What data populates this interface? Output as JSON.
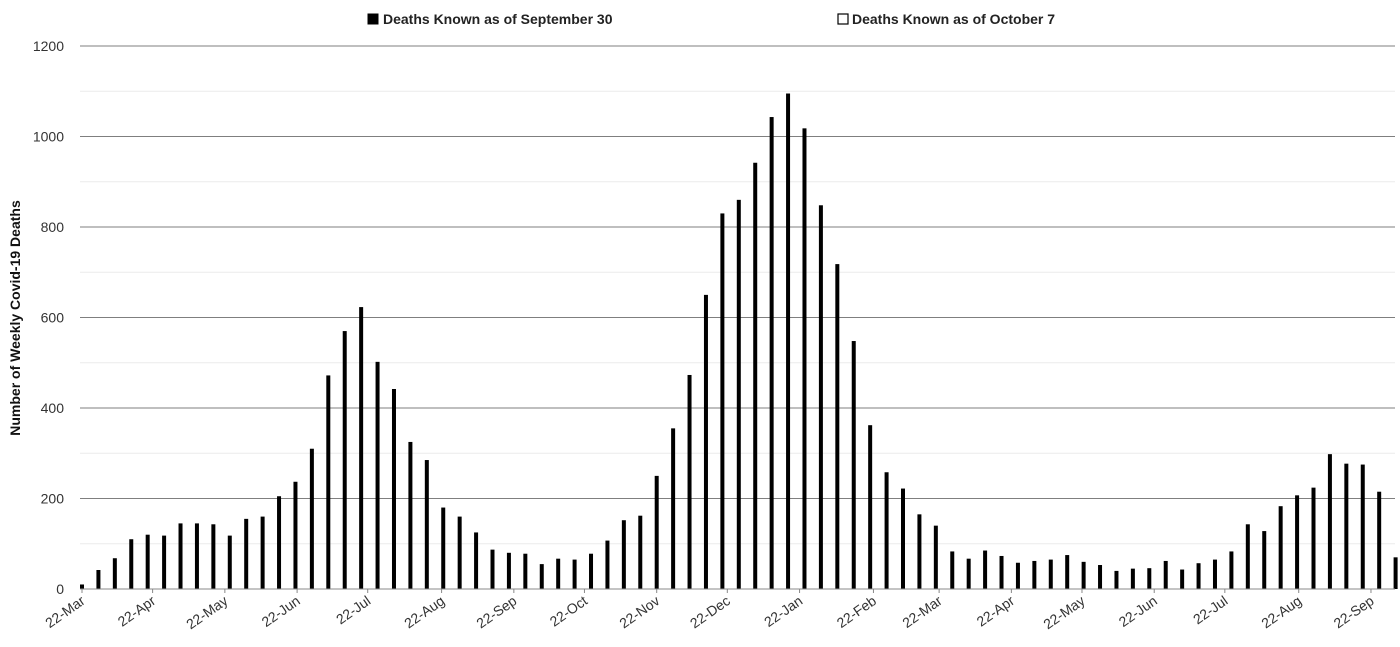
{
  "chart_data": {
    "type": "bar",
    "title": "",
    "ylabel": "Number of Weekly Covid-19 Deaths",
    "xlabel": "",
    "ylim": [
      0,
      1200
    ],
    "yticks": [
      0,
      200,
      400,
      600,
      800,
      1000,
      1200
    ],
    "grid": true,
    "legend_position": "top",
    "legend": [
      {
        "label": "Deaths Known as of September 30",
        "color": "#000000"
      },
      {
        "label": "Deaths Known as of October 7",
        "color": "#ffffff"
      }
    ],
    "x_tick_labels": [
      "22-Mar",
      "22-Apr",
      "22-May",
      "22-Jun",
      "22-Jul",
      "22-Aug",
      "22-Sep",
      "22-Oct",
      "22-Nov",
      "22-Dec",
      "22-Jan",
      "22-Feb",
      "22-Mar",
      "22-Apr",
      "22-May",
      "22-Jun",
      "22-Jul",
      "22-Aug",
      "22-Sep"
    ],
    "x_tick_positions": [
      0,
      4.3,
      8.7,
      13.1,
      17.4,
      21.9,
      26.3,
      30.6,
      35.0,
      39.3,
      43.7,
      48.2,
      52.2,
      56.6,
      60.9,
      65.3,
      69.6,
      74.1,
      78.5
    ],
    "series": [
      {
        "name": "Deaths Known as of September 30",
        "color": "#000000",
        "values": [
          10,
          42,
          68,
          110,
          120,
          118,
          145,
          145,
          143,
          118,
          155,
          160,
          205,
          237,
          310,
          472,
          570,
          623,
          502,
          442,
          325,
          285,
          180,
          160,
          125,
          87,
          80,
          78,
          55,
          67,
          65,
          78,
          107,
          152,
          162,
          250,
          355,
          473,
          650,
          830,
          860,
          942,
          1043,
          1095,
          1018,
          848,
          718,
          548,
          362,
          258,
          222,
          165,
          140,
          83,
          67,
          85,
          73,
          58,
          62,
          65,
          75,
          60,
          53,
          40,
          45,
          46,
          62,
          43,
          57,
          65,
          83,
          143,
          128,
          183,
          207,
          224,
          298,
          277,
          275,
          215,
          70
        ]
      }
    ]
  }
}
